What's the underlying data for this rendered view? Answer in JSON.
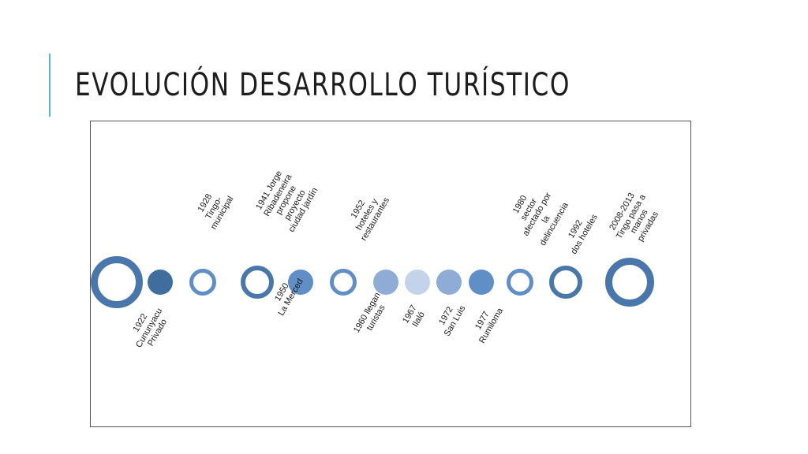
{
  "slide": {
    "title": "EVOLUCIÓN DESARROLLO TURÍSTICO"
  },
  "colors": {
    "accent": "#58b4cf",
    "ring_dark": "#4a77ab",
    "fill_dark": "#3f6d9e",
    "fill_mid": "#5f8fc6",
    "fill_light": "#8eacd6",
    "fill_pale": "#c3d3ea"
  },
  "timeline": {
    "nodes": [
      {
        "id": "n1",
        "style": "ring-large"
      },
      {
        "id": "n2",
        "style": "disc-dark"
      },
      {
        "id": "n3",
        "style": "ring-small"
      },
      {
        "id": "n4",
        "style": "ring"
      },
      {
        "id": "n5",
        "style": "disc-mid"
      },
      {
        "id": "n6",
        "style": "ring-small"
      },
      {
        "id": "n7",
        "style": "disc-light"
      },
      {
        "id": "n8",
        "style": "disc-pale"
      },
      {
        "id": "n9",
        "style": "disc-light"
      },
      {
        "id": "n10",
        "style": "disc-mid"
      },
      {
        "id": "n11",
        "style": "ring-small"
      },
      {
        "id": "n12",
        "style": "ring"
      },
      {
        "id": "n13",
        "style": "ring-large"
      }
    ],
    "labels_above": [
      {
        "id": "a1928",
        "lines": [
          "1928",
          "Tingo-",
          "municipal"
        ]
      },
      {
        "id": "a1941",
        "lines": [
          "1941 Jorge",
          "Ribadeneira",
          "propone",
          "proyecto",
          "ciudad jardín"
        ]
      },
      {
        "id": "a1952",
        "lines": [
          "1952",
          "hoteles y",
          "restaurantes"
        ]
      },
      {
        "id": "a1980",
        "lines": [
          "1980",
          "sector",
          "afectado por",
          "la",
          "delincuencia"
        ]
      },
      {
        "id": "a1992",
        "lines": [
          "1992",
          "dos hoteles"
        ]
      },
      {
        "id": "a2008",
        "lines": [
          "2008-2013",
          "Tingo pasa a",
          "manos",
          "privadas"
        ]
      }
    ],
    "labels_below": [
      {
        "id": "b1922",
        "lines": [
          "1922",
          "Cununyacu",
          "Privado"
        ]
      },
      {
        "id": "b1950",
        "lines": [
          "1950",
          "La Merced"
        ]
      },
      {
        "id": "b1960",
        "lines": [
          "1960 llegan",
          "turistas"
        ]
      },
      {
        "id": "b1967",
        "lines": [
          "1967",
          "Ilaló"
        ]
      },
      {
        "id": "b1972",
        "lines": [
          "1972",
          "San Luis"
        ]
      },
      {
        "id": "b1977",
        "lines": [
          "1977",
          "Rumiloma"
        ]
      }
    ]
  }
}
